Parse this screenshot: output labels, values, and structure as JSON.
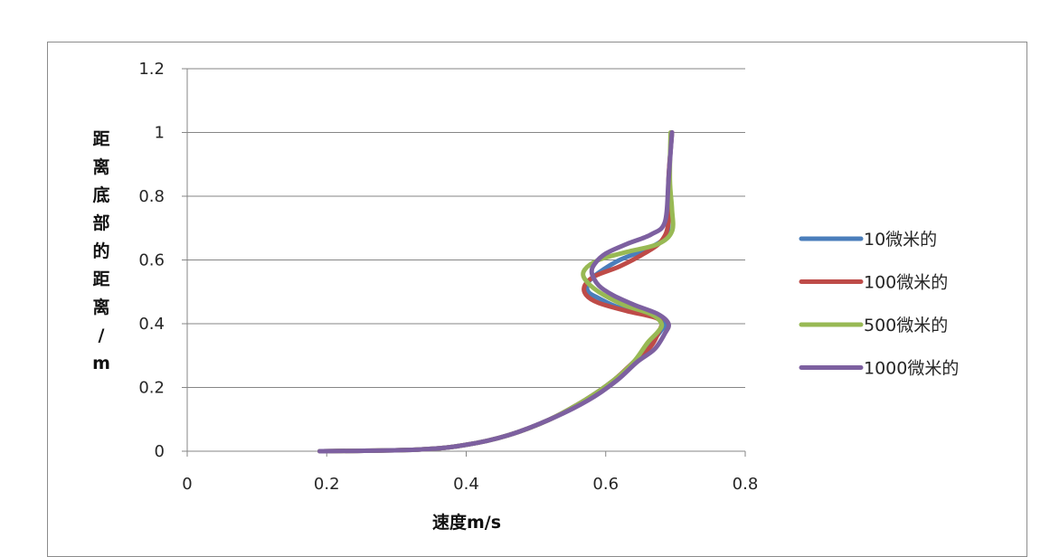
{
  "chart_data": {
    "type": "line",
    "xlabel": "速度m/s",
    "ylabel": "距离底部的距离/m",
    "xlim": [
      0,
      0.8
    ],
    "ylim": [
      0,
      1.2
    ],
    "x_ticks": [
      "0",
      "0.2",
      "0.4",
      "0.6",
      "0.8"
    ],
    "y_ticks": [
      "0",
      "0.2",
      "0.4",
      "0.6",
      "0.8",
      "1",
      "1.2"
    ],
    "grid": "horizontal",
    "legend_position": "right",
    "series": [
      {
        "name": "10微米的",
        "color": "#4a7ebb",
        "points": [
          [
            0.19,
            0
          ],
          [
            0.33,
            0.005
          ],
          [
            0.4,
            0.02
          ],
          [
            0.46,
            0.05
          ],
          [
            0.52,
            0.1
          ],
          [
            0.57,
            0.16
          ],
          [
            0.61,
            0.22
          ],
          [
            0.64,
            0.28
          ],
          [
            0.665,
            0.34
          ],
          [
            0.68,
            0.38
          ],
          [
            0.685,
            0.4
          ],
          [
            0.67,
            0.425
          ],
          [
            0.62,
            0.45
          ],
          [
            0.59,
            0.48
          ],
          [
            0.575,
            0.5
          ],
          [
            0.575,
            0.53
          ],
          [
            0.59,
            0.56
          ],
          [
            0.62,
            0.6
          ],
          [
            0.66,
            0.635
          ],
          [
            0.685,
            0.67
          ],
          [
            0.69,
            0.72
          ],
          [
            0.69,
            0.85
          ],
          [
            0.695,
            1.0
          ]
        ]
      },
      {
        "name": "100微米的",
        "color": "#be4b48",
        "points": [
          [
            0.19,
            0
          ],
          [
            0.33,
            0.005
          ],
          [
            0.4,
            0.02
          ],
          [
            0.46,
            0.05
          ],
          [
            0.52,
            0.1
          ],
          [
            0.57,
            0.16
          ],
          [
            0.61,
            0.22
          ],
          [
            0.64,
            0.28
          ],
          [
            0.665,
            0.33
          ],
          [
            0.675,
            0.37
          ],
          [
            0.68,
            0.4
          ],
          [
            0.67,
            0.42
          ],
          [
            0.63,
            0.44
          ],
          [
            0.59,
            0.465
          ],
          [
            0.572,
            0.49
          ],
          [
            0.57,
            0.52
          ],
          [
            0.585,
            0.55
          ],
          [
            0.62,
            0.58
          ],
          [
            0.655,
            0.62
          ],
          [
            0.68,
            0.66
          ],
          [
            0.69,
            0.72
          ],
          [
            0.69,
            0.85
          ],
          [
            0.695,
            1.0
          ]
        ]
      },
      {
        "name": "500微米的",
        "color": "#98b954",
        "points": [
          [
            0.19,
            0
          ],
          [
            0.33,
            0.005
          ],
          [
            0.4,
            0.02
          ],
          [
            0.46,
            0.05
          ],
          [
            0.52,
            0.1
          ],
          [
            0.57,
            0.16
          ],
          [
            0.61,
            0.22
          ],
          [
            0.64,
            0.28
          ],
          [
            0.66,
            0.34
          ],
          [
            0.675,
            0.375
          ],
          [
            0.68,
            0.4
          ],
          [
            0.665,
            0.43
          ],
          [
            0.625,
            0.46
          ],
          [
            0.59,
            0.5
          ],
          [
            0.57,
            0.54
          ],
          [
            0.57,
            0.57
          ],
          [
            0.59,
            0.6
          ],
          [
            0.63,
            0.625
          ],
          [
            0.675,
            0.65
          ],
          [
            0.695,
            0.69
          ],
          [
            0.695,
            0.76
          ],
          [
            0.692,
            0.85
          ],
          [
            0.693,
            1.0
          ]
        ]
      },
      {
        "name": "1000微米的",
        "color": "#7d60a0",
        "points": [
          [
            0.19,
            0
          ],
          [
            0.33,
            0.005
          ],
          [
            0.4,
            0.02
          ],
          [
            0.46,
            0.05
          ],
          [
            0.52,
            0.1
          ],
          [
            0.575,
            0.16
          ],
          [
            0.615,
            0.22
          ],
          [
            0.645,
            0.28
          ],
          [
            0.67,
            0.32
          ],
          [
            0.685,
            0.37
          ],
          [
            0.69,
            0.4
          ],
          [
            0.675,
            0.43
          ],
          [
            0.64,
            0.46
          ],
          [
            0.61,
            0.49
          ],
          [
            0.59,
            0.52
          ],
          [
            0.58,
            0.56
          ],
          [
            0.585,
            0.59
          ],
          [
            0.6,
            0.62
          ],
          [
            0.63,
            0.65
          ],
          [
            0.665,
            0.68
          ],
          [
            0.685,
            0.72
          ],
          [
            0.69,
            0.85
          ],
          [
            0.695,
            1.0
          ]
        ]
      }
    ]
  }
}
